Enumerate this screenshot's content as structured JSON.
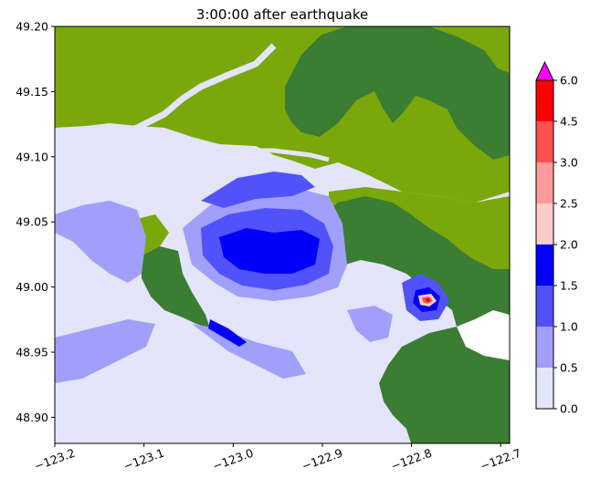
{
  "title": "3:00:00 after earthquake",
  "map": {
    "lon_range": [
      -123.2,
      -122.69
    ],
    "lat_range": [
      48.88,
      49.2
    ],
    "x_ticks": [
      "−123.2",
      "−123.1",
      "−123.0",
      "−122.9",
      "−122.8",
      "−122.7"
    ],
    "x_tick_values": [
      -123.2,
      -123.1,
      -123.0,
      -122.9,
      -122.8,
      -122.7
    ],
    "y_ticks": [
      "49.20",
      "49.15",
      "49.10",
      "49.05",
      "49.00",
      "48.95",
      "48.90"
    ],
    "y_tick_values": [
      49.2,
      49.15,
      49.1,
      49.05,
      49.0,
      48.95,
      48.9
    ],
    "colors": {
      "land_light": "#7aa70a",
      "land_dark": "#3a7d33",
      "water_0": "#e4e4fa",
      "water_05": "#a0a0fa",
      "water_10": "#5252fa",
      "water_15": "#0000fa",
      "water_20": "#ffcccc",
      "water_25": "#ff9a9a",
      "water_30": "#ff5050",
      "water_45": "#ff0000",
      "extend": "#ff00ff"
    }
  },
  "colorbar": {
    "levels": [
      "0.0",
      "0.5",
      "1.0",
      "1.5",
      "2.0",
      "2.5",
      "3.0",
      "4.5",
      "6.0"
    ],
    "colors": [
      "#e4e4fa",
      "#a0a0fa",
      "#5252fa",
      "#0000fa",
      "#ffcccc",
      "#ff9a9a",
      "#ff5050",
      "#ff0000"
    ],
    "extend_color": "#ff00ff"
  }
}
